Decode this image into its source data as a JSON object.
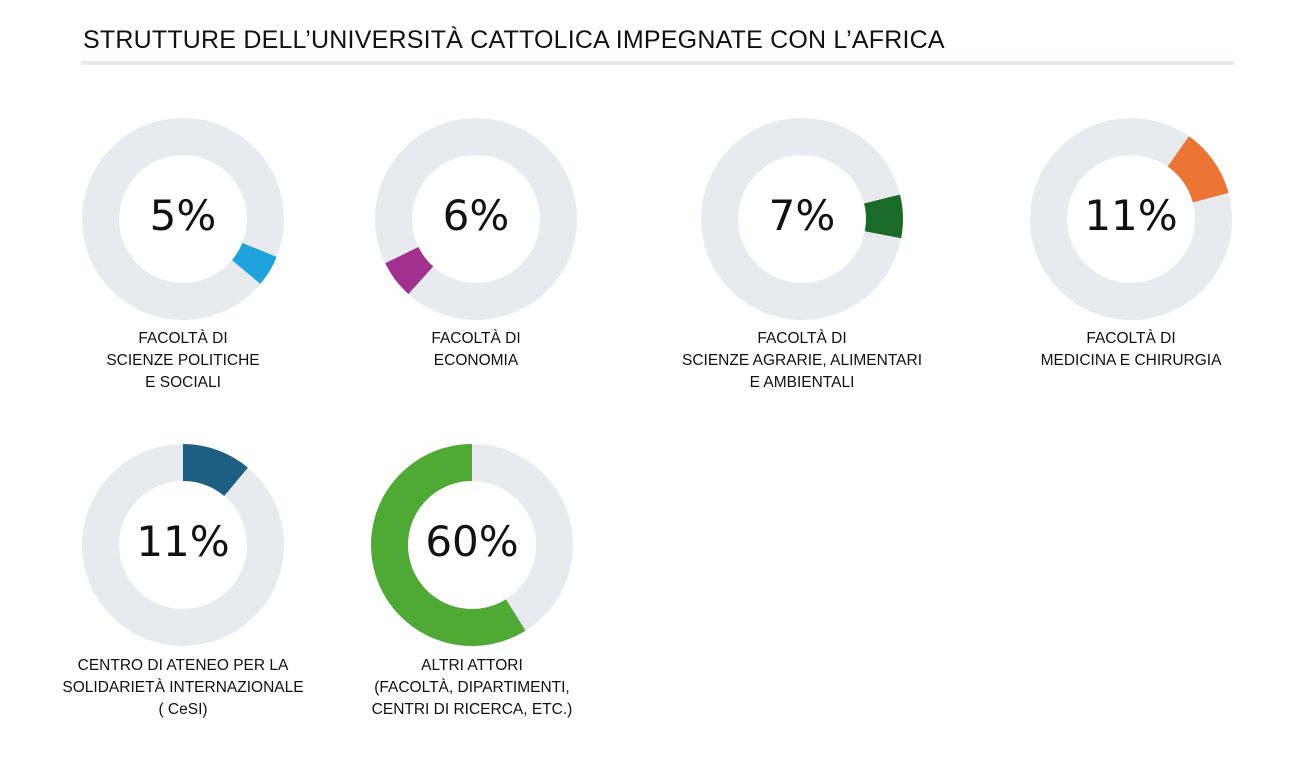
{
  "title": "STRUTTURE DELL’UNIVERSITÀ CATTOLICA IMPEGNATE CON L’AFRICA",
  "chart_data": {
    "type": "donut-grid",
    "track_color": "#e7eaee",
    "items": [
      {
        "value": 5,
        "label_text": "5%",
        "label": "FACOLTÀ DI\nSCIENZE POLITICHE\nE SOCIALI",
        "color": "#1ea3dc",
        "start_deg": 112,
        "extent_deg": 18
      },
      {
        "value": 6,
        "label_text": "6%",
        "label": "FACOLTÀ DI\nECONOMIA",
        "color": "#a1308f",
        "start_deg": 222,
        "extent_deg": 22
      },
      {
        "value": 7,
        "label_text": "7%",
        "label": "FACOLTÀ DI\nSCIENZE AGRARIE, ALIMENTARI\nE AMBIENTALI",
        "color": "#1a6b27",
        "start_deg": 76,
        "extent_deg": 25
      },
      {
        "value": 11,
        "label_text": "11%",
        "label": "FACOLTÀ DI\nMEDICINA E CHIRURGIA",
        "color": "#ec7535",
        "start_deg": 35,
        "extent_deg": 40
      },
      {
        "value": 11,
        "label_text": "11%",
        "label": "CENTRO DI ATENEO PER LA\nSOLIDARIETÀ INTERNAZIONALE\n( CeSI)",
        "color": "#1d5f82",
        "start_deg": 0,
        "extent_deg": 40
      },
      {
        "value": 60,
        "label_text": "60%",
        "label": "ALTRI ATTORI\n(FACOLTÀ, DIPARTIMENTI,\nCENTRI DI RICERCA, ETC.)",
        "color": "#4ea935",
        "start_deg": 148,
        "extent_deg": 212
      }
    ]
  }
}
